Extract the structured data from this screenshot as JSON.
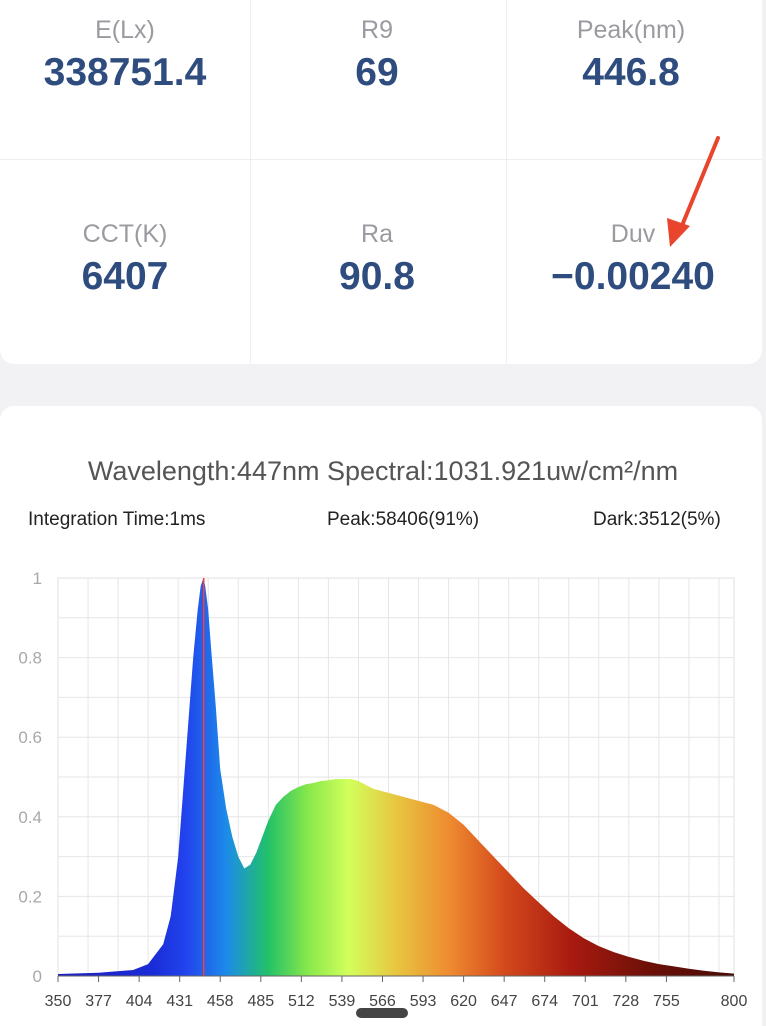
{
  "metrics": [
    {
      "label": "E(Lx)",
      "value": "338751.4"
    },
    {
      "label": "R9",
      "value": "69"
    },
    {
      "label": "Peak(nm)",
      "value": "446.8"
    },
    {
      "label": "CCT(K)",
      "value": "6407"
    },
    {
      "label": "Ra",
      "value": "90.8"
    },
    {
      "label": "Duv",
      "value": "−0.00240"
    }
  ],
  "spectrum": {
    "header": "Wavelength:447nm Spectral:1031.921uw/cm²/nm",
    "integration": "Integration Time:1ms",
    "peak": "Peak:58406(91%)",
    "dark": "Dark:3512(5%)"
  },
  "colors": {
    "value_text": "#2f4c7f",
    "marker": "#ff3b30",
    "arrow": "#e8452c"
  },
  "chart_data": {
    "type": "area",
    "title": "",
    "xlabel": "",
    "ylabel": "",
    "xlim": [
      350,
      800
    ],
    "ylim": [
      0,
      1
    ],
    "grid": true,
    "x_ticks": [
      350,
      377,
      404,
      431,
      458,
      485,
      512,
      539,
      566,
      593,
      620,
      647,
      674,
      701,
      728,
      755,
      800
    ],
    "y_ticks": [
      0,
      0.2,
      0.4,
      0.6,
      0.8,
      1
    ],
    "marker_wavelength": 447,
    "x": [
      350,
      377,
      400,
      410,
      420,
      425,
      430,
      435,
      440,
      443,
      445,
      446.8,
      448,
      450,
      452,
      455,
      458,
      462,
      466,
      470,
      474,
      478,
      482,
      486,
      490,
      495,
      500,
      505,
      510,
      515,
      520,
      525,
      530,
      535,
      540,
      545,
      550,
      555,
      560,
      565,
      570,
      580,
      590,
      600,
      610,
      620,
      630,
      640,
      650,
      660,
      670,
      680,
      690,
      700,
      710,
      720,
      730,
      740,
      750,
      760,
      770,
      780,
      790,
      800
    ],
    "y": [
      0.005,
      0.008,
      0.015,
      0.03,
      0.08,
      0.15,
      0.3,
      0.55,
      0.8,
      0.92,
      0.98,
      1.0,
      0.98,
      0.92,
      0.82,
      0.68,
      0.52,
      0.42,
      0.35,
      0.3,
      0.27,
      0.28,
      0.31,
      0.35,
      0.39,
      0.43,
      0.45,
      0.465,
      0.475,
      0.482,
      0.485,
      0.49,
      0.492,
      0.495,
      0.495,
      0.495,
      0.49,
      0.48,
      0.47,
      0.465,
      0.46,
      0.45,
      0.44,
      0.43,
      0.41,
      0.38,
      0.34,
      0.3,
      0.26,
      0.22,
      0.185,
      0.15,
      0.12,
      0.095,
      0.075,
      0.06,
      0.048,
      0.038,
      0.03,
      0.024,
      0.018,
      0.013,
      0.009,
      0.006
    ]
  }
}
